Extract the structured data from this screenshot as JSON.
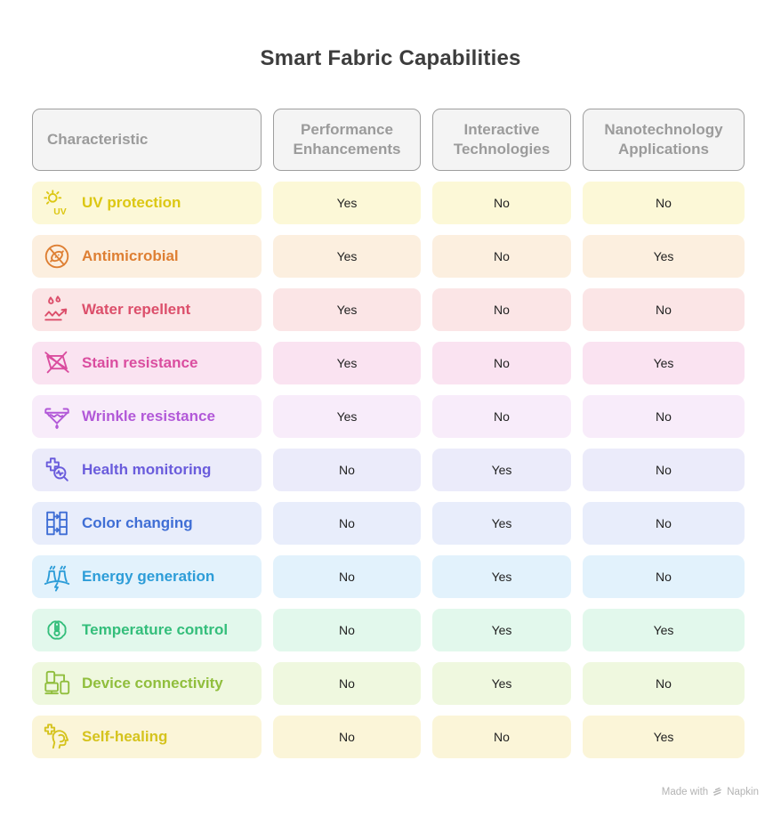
{
  "title": "Smart Fabric Capabilities",
  "columns": [
    "Characteristic",
    "Performance Enhancements",
    "Interactive Technologies",
    "Nanotechnology Applications"
  ],
  "rows": [
    {
      "label": "UV protection",
      "icon": "sun-uv-icon",
      "color": "#dcc713",
      "bg": "#fcf8d7",
      "values": [
        "Yes",
        "No",
        "No"
      ]
    },
    {
      "label": "Antimicrobial",
      "icon": "microbe-crossed-icon",
      "color": "#de7f33",
      "bg": "#fcefdf",
      "values": [
        "Yes",
        "No",
        "Yes"
      ]
    },
    {
      "label": "Water repellent",
      "icon": "water-repellent-icon",
      "color": "#dc4f6b",
      "bg": "#fbe5e6",
      "values": [
        "Yes",
        "No",
        "No"
      ]
    },
    {
      "label": "Stain resistance",
      "icon": "fabric-crossed-icon",
      "color": "#da4d9f",
      "bg": "#fae3f1",
      "values": [
        "Yes",
        "No",
        "Yes"
      ]
    },
    {
      "label": "Wrinkle resistance",
      "icon": "iron-funnel-icon",
      "color": "#b259d8",
      "bg": "#f8ecfa",
      "values": [
        "Yes",
        "No",
        "No"
      ]
    },
    {
      "label": "Health monitoring",
      "icon": "cross-magnifier-icon",
      "color": "#6a5cdc",
      "bg": "#ebebfa",
      "values": [
        "No",
        "Yes",
        "No"
      ]
    },
    {
      "label": "Color changing",
      "icon": "color-swap-columns-icon",
      "color": "#3f6ed5",
      "bg": "#e8edfb",
      "values": [
        "No",
        "Yes",
        "No"
      ]
    },
    {
      "label": "Energy generation",
      "icon": "power-plant-icon",
      "color": "#2d9dd8",
      "bg": "#e2f2fc",
      "values": [
        "No",
        "Yes",
        "No"
      ]
    },
    {
      "label": "Temperature control",
      "icon": "gear-thermometer-icon",
      "color": "#34be7b",
      "bg": "#e2f8ec",
      "values": [
        "No",
        "Yes",
        "Yes"
      ]
    },
    {
      "label": "Device connectivity",
      "icon": "connected-devices-icon",
      "color": "#90be3d",
      "bg": "#eff8df",
      "values": [
        "No",
        "Yes",
        "No"
      ]
    },
    {
      "label": "Self-healing",
      "icon": "head-plus-icon",
      "color": "#d5c31d",
      "bg": "#fbf5d8",
      "values": [
        "No",
        "No",
        "Yes"
      ]
    }
  ],
  "header_style": {
    "bg": "#f4f4f4",
    "border": "#9e9e9e",
    "text": "#9b9b9b"
  },
  "watermark": {
    "prefix": "Made with",
    "brand": "Napkin"
  }
}
